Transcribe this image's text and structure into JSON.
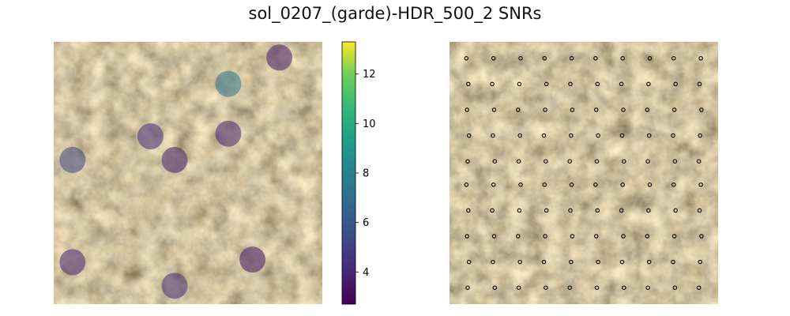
{
  "chart_data": [
    {
      "type": "scatter",
      "title": "sol_0207_(garde)-HDR_500_2 SNRs",
      "panel": "left",
      "background": "rock texture image",
      "colormap": "viridis",
      "colorbar": {
        "min": 2.7,
        "max": 13.3,
        "ticks": [
          4,
          6,
          8,
          10,
          12
        ],
        "tick_labels": [
          "4",
          "6",
          "8",
          "10",
          "12"
        ]
      },
      "axes_visible": false,
      "points": [
        {
          "x": 0.84,
          "y": 0.06,
          "snr": 3.7
        },
        {
          "x": 0.65,
          "y": 0.16,
          "snr": 7.3
        },
        {
          "x": 0.36,
          "y": 0.36,
          "snr": 4.2
        },
        {
          "x": 0.65,
          "y": 0.35,
          "snr": 3.9
        },
        {
          "x": 0.07,
          "y": 0.45,
          "snr": 5.2
        },
        {
          "x": 0.45,
          "y": 0.45,
          "snr": 3.8
        },
        {
          "x": 0.07,
          "y": 0.84,
          "snr": 3.9
        },
        {
          "x": 0.74,
          "y": 0.83,
          "snr": 3.5
        },
        {
          "x": 0.45,
          "y": 0.93,
          "snr": 4.1
        }
      ]
    },
    {
      "type": "scatter",
      "panel": "right",
      "background": "rock texture image",
      "axes_visible": false,
      "marker": "hollow circle",
      "grid_points": {
        "columns": 10,
        "rows": 10
      }
    }
  ],
  "colors": {
    "rock_base": "#7d6d52",
    "rock_dark": "#3e3428",
    "rock_light": "#b8a888",
    "rock_grey": "#6e7468",
    "marker_edge": "#000000"
  }
}
